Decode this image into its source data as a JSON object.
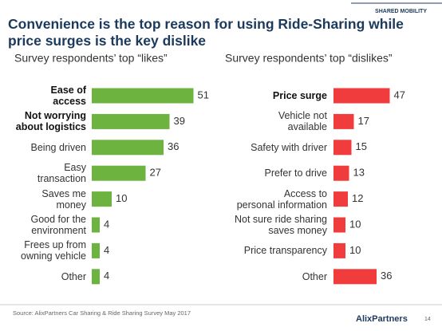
{
  "section": "SHARED MOBILITY",
  "title": "Convenience is the top reason for using Ride-Sharing while price surges is the key dislike",
  "source": "Source: AlixPartners Car Sharing & Ride Sharing Survey May 2017",
  "logo": "AlixPartners",
  "page_number": 14,
  "chart_data": [
    {
      "type": "bar",
      "orientation": "horizontal",
      "title": "Survey respondents’ top “likes”",
      "categories": [
        "Ease of\naccess",
        "Not worrying\nabout logistics",
        "Being driven",
        "Easy\ntransaction",
        "Saves me\nmoney",
        "Good for the\nenvironment",
        "Frees  up from\nowning vehicle",
        "Other"
      ],
      "values": [
        51,
        39,
        36,
        27,
        10,
        4,
        4,
        4
      ],
      "color": "#6db33f",
      "bold_categories": [
        0,
        1
      ]
    },
    {
      "type": "bar",
      "orientation": "horizontal",
      "title": "Survey respondents’ top “dislikes”",
      "categories": [
        "Price surge",
        "Vehicle not\navailable",
        "Safety with driver",
        "Prefer to drive",
        "Access to\npersonal information",
        "Not sure ride sharing\nsaves money",
        "Price transparency",
        "Other"
      ],
      "values": [
        47,
        17,
        15,
        13,
        12,
        10,
        10,
        36
      ],
      "color": "#f03c3c",
      "bold_categories": [
        0
      ]
    }
  ]
}
